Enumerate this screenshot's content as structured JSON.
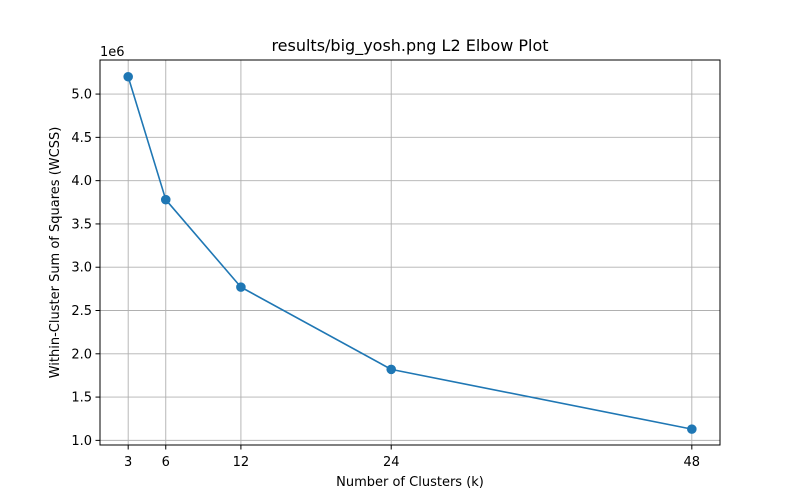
{
  "chart_data": {
    "type": "line",
    "title": "results/big_yosh.png L2 Elbow Plot",
    "xlabel": "Number of Clusters (k)",
    "ylabel": "Within-Cluster Sum of Squares (WCSS)",
    "y_offset_label": "1e6",
    "x": [
      3,
      6,
      12,
      24,
      48
    ],
    "x_tick_labels": [
      "3",
      "6",
      "12",
      "24",
      "48"
    ],
    "series": [
      {
        "values": [
          5.2,
          3.78,
          2.77,
          1.82,
          1.13
        ]
      }
    ],
    "y_ticks": [
      1.0,
      1.5,
      2.0,
      2.5,
      3.0,
      3.5,
      4.0,
      4.5,
      5.0
    ],
    "y_tick_labels": [
      "1.0",
      "1.5",
      "2.0",
      "2.5",
      "3.0",
      "3.5",
      "4.0",
      "4.5",
      "5.0"
    ],
    "xlim": [
      0.75,
      50.25
    ],
    "ylim": [
      0.9465,
      5.3935
    ],
    "grid": true,
    "marker": "circle",
    "line_color": "#1f77b4",
    "grid_color": "#b0b0b0",
    "axis_color": "#000000"
  }
}
